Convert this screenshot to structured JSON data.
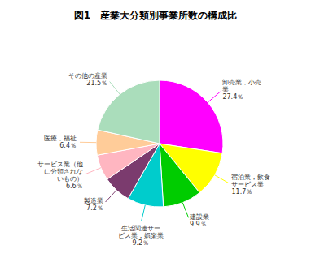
{
  "chart_data": {
    "type": "pie",
    "title": "図1　産業大分類別事業所数の構成比",
    "categories": [
      "卸売業，小売\n業",
      "宿泊業，飲食\nサービス業",
      "建設業",
      "生活関連サー\nビス業，娯楽業",
      "製造業",
      "サービス業（他\nに分類されな\nいもの）",
      "医療，福祉",
      "その他の産業"
    ],
    "values": [
      27.4,
      11.7,
      9.9,
      9.2,
      7.2,
      6.6,
      6.4,
      21.5
    ],
    "value_labels": [
      "27.4％",
      "11.7％",
      "9.9％",
      "9.2％",
      "7.2％",
      "6.6％",
      "6.4％",
      "21.5％"
    ],
    "colors": [
      "#FF00FF",
      "#FFFF00",
      "#00CC00",
      "#00CCCC",
      "#7B3B6E",
      "#FFB6C1",
      "#FFCC99",
      "#AADDBB"
    ],
    "data_labels": true
  }
}
